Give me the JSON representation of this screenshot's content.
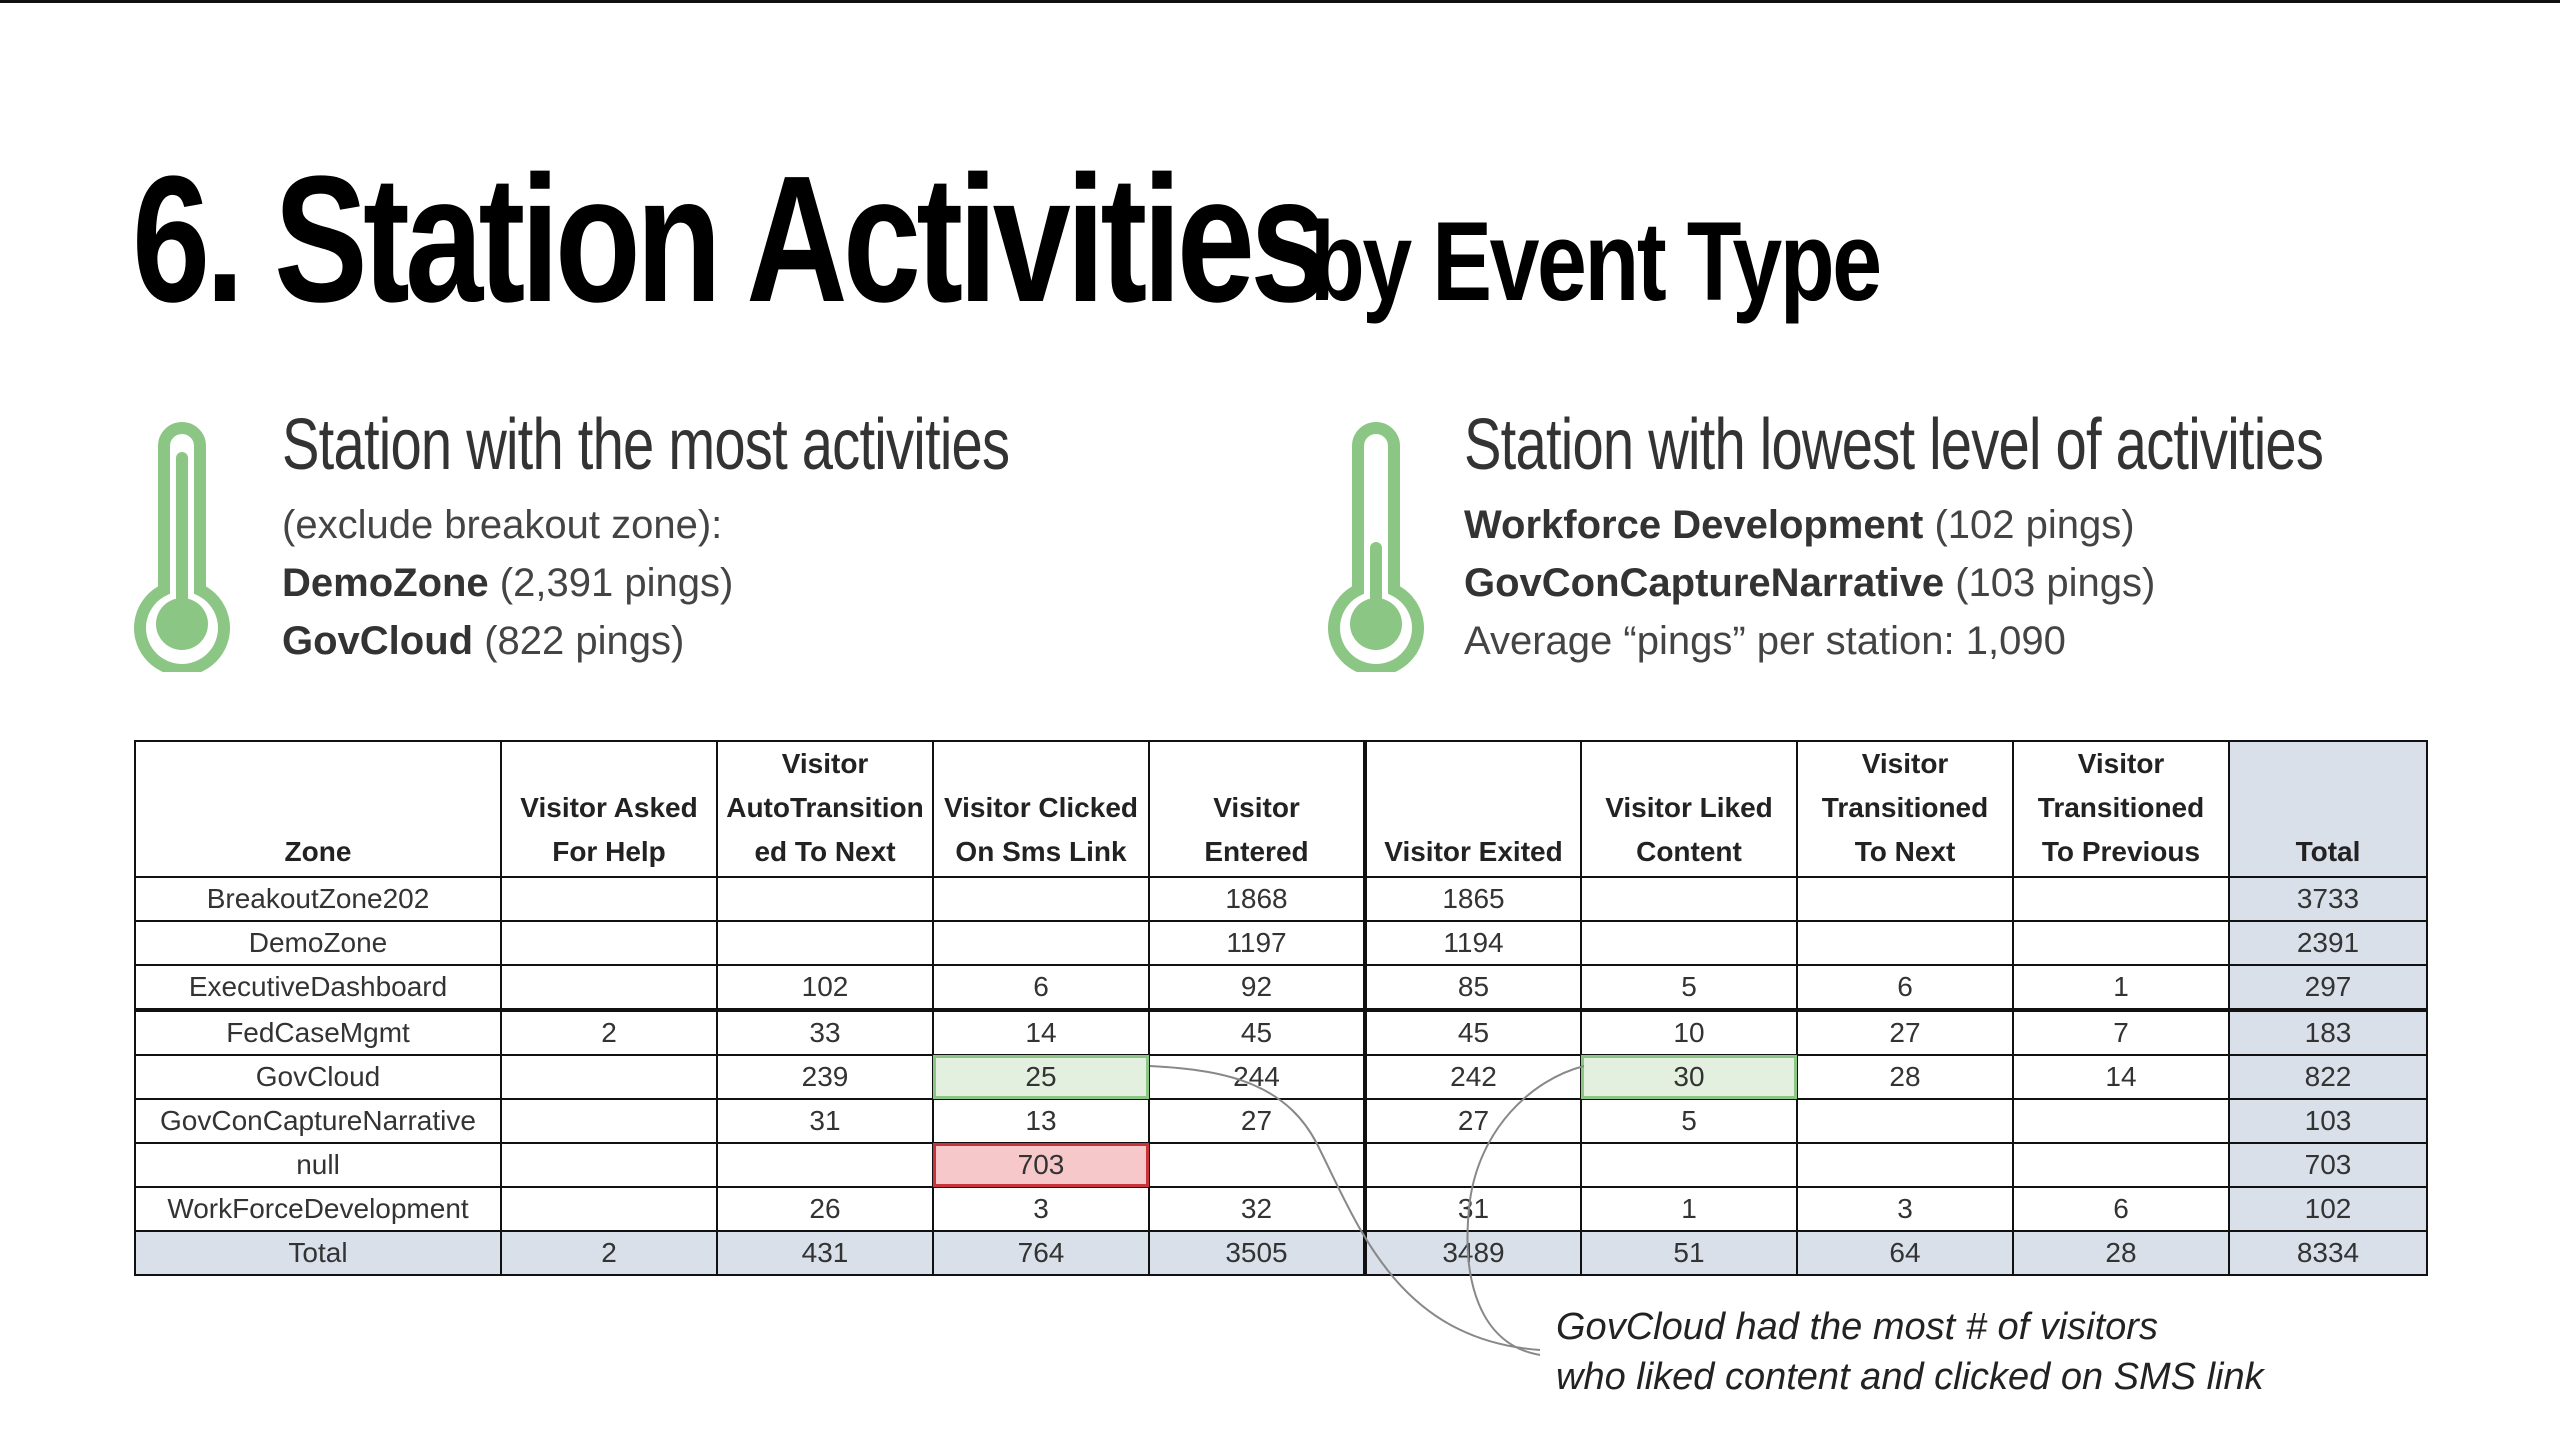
{
  "slide": {
    "title_main": "6. Station Activities",
    "title_sub": "by Event Type"
  },
  "left_panel": {
    "heading": "Station with the most activities",
    "line1": "(exclude breakout zone):",
    "line2_bold": "DemoZone",
    "line2_rest": " (2,391 pings)",
    "line3_bold": "GovCloud",
    "line3_rest": " (822 pings)",
    "icon": "thermometer-high-icon"
  },
  "right_panel": {
    "heading": "Station with lowest level of activities",
    "line1_bold": "Workforce Development",
    "line1_rest": " (102 pings)",
    "line2_bold": "GovConCaptureNarrative",
    "line2_rest": " (103 pings)",
    "line3": "Average “pings” per station:  1,090",
    "icon": "thermometer-low-icon"
  },
  "annotation": {
    "line1": "GovCloud had the most # of visitors",
    "line2": "who liked content and clicked on SMS link"
  },
  "colors": {
    "thermometer": "#8cc684",
    "total_fill": "#d9e0ea",
    "green_highlight": "#8cc684",
    "red_highlight": "#c9343c"
  },
  "chart_data": {
    "type": "table",
    "columns": [
      [
        "Zone"
      ],
      [
        "Visitor Asked",
        "For Help"
      ],
      [
        "Visitor",
        "AutoTransition",
        "ed To Next"
      ],
      [
        "Visitor Clicked",
        "On Sms Link"
      ],
      [
        "Visitor",
        "Entered"
      ],
      [
        "Visitor Exited"
      ],
      [
        "Visitor Liked",
        "Content"
      ],
      [
        "Visitor",
        "Transitioned",
        "To Next"
      ],
      [
        "Visitor",
        "Transitioned",
        "To Previous"
      ],
      [
        "Total"
      ]
    ],
    "rows": [
      [
        "BreakoutZone202",
        "",
        "",
        "",
        "1868",
        "1865",
        "",
        "",
        "",
        "3733"
      ],
      [
        "DemoZone",
        "",
        "",
        "",
        "1197",
        "1194",
        "",
        "",
        "",
        "2391"
      ],
      [
        "ExecutiveDashboard",
        "",
        "102",
        "6",
        "92",
        "85",
        "5",
        "6",
        "1",
        "297"
      ],
      [
        "FedCaseMgmt",
        "2",
        "33",
        "14",
        "45",
        "45",
        "10",
        "27",
        "7",
        "183"
      ],
      [
        "GovCloud",
        "",
        "239",
        "25",
        "244",
        "242",
        "30",
        "28",
        "14",
        "822"
      ],
      [
        "GovConCaptureNarrative",
        "",
        "31",
        "13",
        "27",
        "27",
        "5",
        "",
        "",
        "103"
      ],
      [
        "null",
        "",
        "",
        "703",
        "",
        "",
        "",
        "",
        "",
        "703"
      ],
      [
        "WorkForceDevelopment",
        "",
        "26",
        "3",
        "32",
        "31",
        "1",
        "3",
        "6",
        "102"
      ]
    ],
    "total_row": [
      "Total",
      "2",
      "431",
      "764",
      "3505",
      "3489",
      "51",
      "64",
      "28",
      "8334"
    ],
    "highlights": [
      {
        "row": 4,
        "col": 3,
        "style": "green"
      },
      {
        "row": 4,
        "col": 6,
        "style": "green"
      },
      {
        "row": 6,
        "col": 3,
        "style": "red"
      }
    ]
  }
}
